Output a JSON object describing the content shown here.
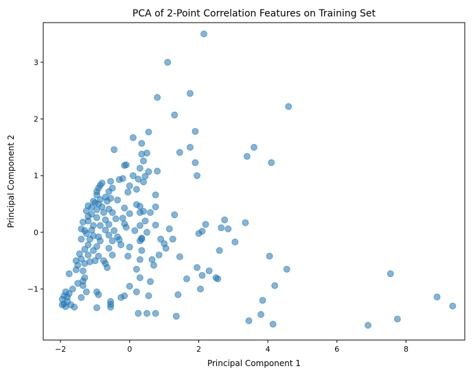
{
  "chart_data": {
    "type": "scatter",
    "title": "PCA of 2-Point Correlation Features on Training Set",
    "xlabel": "Principal Component 1",
    "ylabel": "Principal Component 2",
    "xlim": [
      -2.5,
      9.7
    ],
    "ylim": [
      -1.9,
      3.7
    ],
    "xticks": [
      -2,
      0,
      2,
      4,
      6,
      8
    ],
    "yticks": [
      -1,
      0,
      1,
      2,
      3
    ],
    "grid": false,
    "legend": "none",
    "marker_color": "#1f77b4",
    "marker_alpha": 0.55,
    "points": [
      [
        2.15,
        3.5
      ],
      [
        1.1,
        3.0
      ],
      [
        1.75,
        2.45
      ],
      [
        0.8,
        2.38
      ],
      [
        4.6,
        2.22
      ],
      [
        1.3,
        2.07
      ],
      [
        1.9,
        1.78
      ],
      [
        0.55,
        1.77
      ],
      [
        0.1,
        1.67
      ],
      [
        3.6,
        1.5
      ],
      [
        1.75,
        1.5
      ],
      [
        -0.45,
        1.46
      ],
      [
        0.35,
        1.57
      ],
      [
        3.4,
        1.34
      ],
      [
        1.45,
        1.41
      ],
      [
        0.5,
        1.4
      ],
      [
        0.35,
        1.38
      ],
      [
        4.1,
        1.23
      ],
      [
        1.9,
        1.23
      ],
      [
        0.4,
        1.26
      ],
      [
        -0.1,
        1.19
      ],
      [
        -0.15,
        1.18
      ],
      [
        0.3,
        1.13
      ],
      [
        0.8,
        1.08
      ],
      [
        0.55,
        1.07
      ],
      [
        1.95,
        1.0
      ],
      [
        0.1,
        1.0
      ],
      [
        0.45,
        0.99
      ],
      [
        -0.2,
        0.95
      ],
      [
        0.25,
        0.94
      ],
      [
        -0.3,
        0.93
      ],
      [
        -0.55,
        0.9
      ],
      [
        -0.8,
        0.87
      ],
      [
        -0.85,
        0.83
      ],
      [
        0.4,
        0.89
      ],
      [
        -0.5,
        0.78
      ],
      [
        0.0,
        0.82
      ],
      [
        0.2,
        0.76
      ],
      [
        -0.9,
        0.78
      ],
      [
        -0.95,
        0.72
      ],
      [
        -0.6,
        0.72
      ],
      [
        0.75,
        0.66
      ],
      [
        -0.05,
        0.71
      ],
      [
        -0.7,
        0.62
      ],
      [
        -0.95,
        0.66
      ],
      [
        -1.05,
        0.55
      ],
      [
        -0.85,
        0.58
      ],
      [
        -0.55,
        0.6
      ],
      [
        -0.35,
        0.57
      ],
      [
        -0.65,
        0.55
      ],
      [
        -0.9,
        0.5
      ],
      [
        -1.0,
        0.52
      ],
      [
        -0.8,
        0.45
      ],
      [
        -1.2,
        0.47
      ],
      [
        -1.1,
        0.44
      ],
      [
        -0.6,
        0.41
      ],
      [
        0.2,
        0.49
      ],
      [
        0.3,
        0.46
      ],
      [
        0.75,
        0.45
      ],
      [
        -0.15,
        0.43
      ],
      [
        -0.95,
        0.4
      ],
      [
        -1.25,
        0.38
      ],
      [
        -0.75,
        0.35
      ],
      [
        -0.5,
        0.35
      ],
      [
        0.0,
        0.33
      ],
      [
        0.3,
        0.35
      ],
      [
        0.4,
        0.37
      ],
      [
        0.6,
        0.35
      ],
      [
        1.3,
        0.31
      ],
      [
        -1.1,
        0.32
      ],
      [
        -1.2,
        0.28
      ],
      [
        -0.95,
        0.26
      ],
      [
        -0.7,
        0.22
      ],
      [
        -0.4,
        0.24
      ],
      [
        -0.2,
        0.25
      ],
      [
        2.75,
        0.22
      ],
      [
        2.2,
        0.14
      ],
      [
        2.65,
        0.08
      ],
      [
        2.85,
        0.06
      ],
      [
        3.35,
        0.17
      ],
      [
        -1.2,
        0.2
      ],
      [
        -1.35,
        0.18
      ],
      [
        -1.05,
        0.12
      ],
      [
        -0.85,
        0.12
      ],
      [
        -0.6,
        0.14
      ],
      [
        -0.15,
        0.15
      ],
      [
        0.45,
        0.2
      ],
      [
        -0.1,
        0.09
      ],
      [
        0.3,
        0.12
      ],
      [
        0.75,
        0.13
      ],
      [
        -1.4,
        0.06
      ],
      [
        -1.3,
        0.03
      ],
      [
        -1.1,
        0.04
      ],
      [
        -0.7,
        0.04
      ],
      [
        -0.45,
        0.03
      ],
      [
        0.15,
        0.03
      ],
      [
        0.5,
        0.0
      ],
      [
        1.15,
        0.06
      ],
      [
        -1.25,
        -0.02
      ],
      [
        -1.05,
        -0.06
      ],
      [
        -0.9,
        -0.08
      ],
      [
        -0.6,
        -0.05
      ],
      [
        -0.35,
        -0.08
      ],
      [
        0.35,
        -0.1
      ],
      [
        2.0,
        -0.02
      ],
      [
        2.1,
        0.02
      ],
      [
        -1.4,
        -0.12
      ],
      [
        -1.15,
        -0.12
      ],
      [
        -0.85,
        -0.15
      ],
      [
        -0.5,
        -0.15
      ],
      [
        -0.3,
        -0.13
      ],
      [
        0.3,
        -0.15
      ],
      [
        0.35,
        -0.12
      ],
      [
        0.9,
        -0.12
      ],
      [
        1.0,
        -0.2
      ],
      [
        3.05,
        -0.17
      ],
      [
        -1.2,
        -0.22
      ],
      [
        -0.95,
        -0.25
      ],
      [
        -0.25,
        -0.22
      ],
      [
        1.25,
        -0.12
      ],
      [
        -1.3,
        -0.3
      ],
      [
        -1.05,
        -0.32
      ],
      [
        -0.6,
        -0.28
      ],
      [
        0.0,
        -0.26
      ],
      [
        0.35,
        -0.32
      ],
      [
        1.05,
        -0.28
      ],
      [
        2.6,
        -0.32
      ],
      [
        -1.45,
        -0.38
      ],
      [
        -1.2,
        -0.4
      ],
      [
        -0.9,
        -0.42
      ],
      [
        -0.5,
        -0.4
      ],
      [
        -0.05,
        -0.42
      ],
      [
        0.85,
        -0.4
      ],
      [
        1.45,
        -0.43
      ],
      [
        4.05,
        -0.42
      ],
      [
        -1.55,
        -0.5
      ],
      [
        -1.4,
        -0.47
      ],
      [
        -1.15,
        -0.52
      ],
      [
        -0.75,
        -0.5
      ],
      [
        -0.7,
        -0.55
      ],
      [
        0.65,
        -0.48
      ],
      [
        0.3,
        -0.48
      ],
      [
        -1.5,
        -0.58
      ],
      [
        -1.3,
        -0.55
      ],
      [
        -1.0,
        -0.5
      ],
      [
        -0.65,
        -0.62
      ],
      [
        0.7,
        -0.58
      ],
      [
        1.95,
        -0.62
      ],
      [
        -1.55,
        -0.66
      ],
      [
        -1.35,
        -0.68
      ],
      [
        0.2,
        -0.65
      ],
      [
        2.3,
        -0.68
      ],
      [
        4.55,
        -0.65
      ],
      [
        -1.75,
        -0.73
      ],
      [
        -1.3,
        -0.8
      ],
      [
        0.3,
        -0.8
      ],
      [
        2.1,
        -0.76
      ],
      [
        2.5,
        -0.8
      ],
      [
        1.65,
        -0.82
      ],
      [
        2.55,
        -0.82
      ],
      [
        -1.5,
        -0.9
      ],
      [
        -1.35,
        -0.86
      ],
      [
        -1.35,
        -0.94
      ],
      [
        0.6,
        -0.87
      ],
      [
        7.55,
        -0.73
      ],
      [
        -1.85,
        -1.05
      ],
      [
        -1.65,
        -1.0
      ],
      [
        -1.25,
        -1.05
      ],
      [
        0.0,
        -0.95
      ],
      [
        2.05,
        -1.0
      ],
      [
        4.2,
        -0.94
      ],
      [
        -1.9,
        -1.12
      ],
      [
        -1.75,
        -1.08
      ],
      [
        -0.95,
        -1.05
      ],
      [
        0.2,
        -1.05
      ],
      [
        1.4,
        -1.1
      ],
      [
        -1.95,
        -1.18
      ],
      [
        -1.8,
        -1.14
      ],
      [
        -1.4,
        -1.15
      ],
      [
        -0.9,
        -1.1
      ],
      [
        -0.15,
        -1.12
      ],
      [
        0.55,
        -1.12
      ],
      [
        -1.9,
        -1.26
      ],
      [
        -1.8,
        -1.22
      ],
      [
        -0.55,
        -1.22
      ],
      [
        -0.55,
        -1.27
      ],
      [
        -0.25,
        -1.15
      ],
      [
        8.9,
        -1.14
      ],
      [
        3.85,
        -1.2
      ],
      [
        -1.95,
        -1.28
      ],
      [
        -1.85,
        -1.31
      ],
      [
        -1.7,
        -1.28
      ],
      [
        -1.6,
        -1.32
      ],
      [
        -0.95,
        -1.33
      ],
      [
        -0.55,
        -1.32
      ],
      [
        9.35,
        -1.3
      ],
      [
        0.25,
        -1.43
      ],
      [
        0.5,
        -1.43
      ],
      [
        0.75,
        -1.43
      ],
      [
        1.35,
        -1.48
      ],
      [
        3.8,
        -1.45
      ],
      [
        3.45,
        -1.56
      ],
      [
        4.15,
        -1.62
      ],
      [
        6.9,
        -1.64
      ],
      [
        7.75,
        -1.53
      ]
    ]
  }
}
